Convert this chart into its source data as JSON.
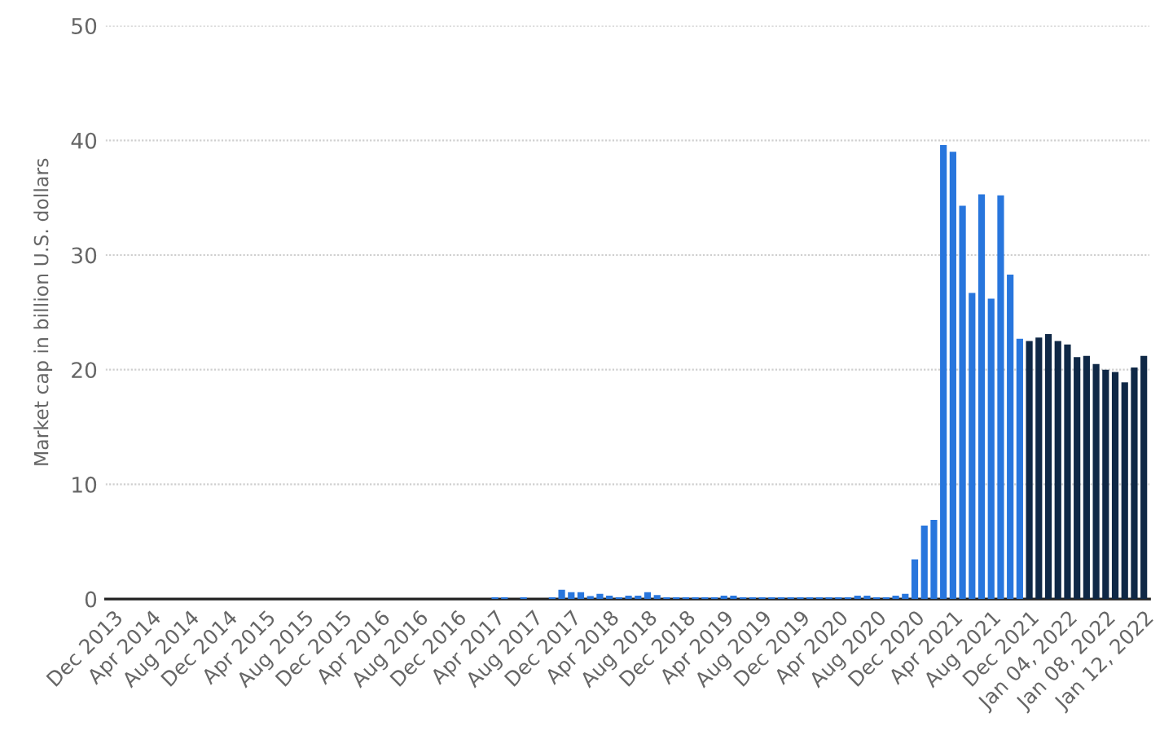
{
  "chart_data": {
    "type": "bar",
    "ylabel": "Market cap in billion U.S. dollars",
    "categories": [
      "Dec 2013",
      null,
      null,
      null,
      "Apr 2014",
      null,
      null,
      null,
      "Aug 2014",
      null,
      null,
      null,
      "Dec 2014",
      null,
      null,
      null,
      "Apr 2015",
      null,
      null,
      null,
      "Aug 2015",
      null,
      null,
      null,
      "Dec 2015",
      null,
      null,
      null,
      "Apr 2016",
      null,
      null,
      null,
      "Aug 2016",
      null,
      null,
      null,
      "Dec 2016",
      null,
      null,
      null,
      "Apr 2017",
      null,
      null,
      null,
      "Aug 2017",
      null,
      null,
      null,
      "Dec 2017",
      null,
      null,
      null,
      "Apr 2018",
      null,
      null,
      null,
      "Aug 2018",
      null,
      null,
      null,
      "Dec 2018",
      null,
      null,
      null,
      "Apr 2019",
      null,
      null,
      null,
      "Aug 2019",
      null,
      null,
      null,
      "Dec 2019",
      null,
      null,
      null,
      "Apr 2020",
      null,
      null,
      null,
      "Aug 2020",
      null,
      null,
      null,
      "Dec 2020",
      null,
      null,
      null,
      "Apr 2021",
      null,
      null,
      null,
      "Aug 2021",
      null,
      null,
      null,
      "Dec 2021",
      null,
      null,
      null,
      "Jan 04, 2022",
      null,
      null,
      null,
      "Jan 08, 2022",
      null,
      null,
      null,
      "Jan 12, 2022"
    ],
    "values": [
      0,
      0,
      0,
      0,
      0,
      0,
      0,
      0,
      0,
      0,
      0,
      0,
      0,
      0,
      0,
      0,
      0,
      0,
      0,
      0,
      0,
      0,
      0,
      0,
      0,
      0,
      0,
      0,
      0,
      0,
      0,
      0,
      0,
      0,
      0,
      0,
      0,
      0,
      0,
      0,
      0.15,
      0.15,
      0,
      0.15,
      0,
      0,
      0.15,
      0.8,
      0.6,
      0.6,
      0.25,
      0.45,
      0.3,
      0.15,
      0.3,
      0.3,
      0.6,
      0.35,
      0.15,
      0.15,
      0.15,
      0.15,
      0.15,
      0.15,
      0.3,
      0.3,
      0.15,
      0.15,
      0.15,
      0.15,
      0.15,
      0.15,
      0.15,
      0.15,
      0.15,
      0.15,
      0.15,
      0.15,
      0.3,
      0.3,
      0.15,
      0.15,
      0.3,
      0.45,
      3.45,
      6.4,
      6.9,
      39.6,
      39.0,
      34.3,
      26.7,
      35.3,
      26.2,
      35.2,
      28.3,
      22.7,
      22.5,
      22.8,
      23.1,
      22.5,
      22.2,
      21.1,
      21.2,
      20.5,
      20.0,
      19.8,
      18.9,
      20.2,
      21.2
    ],
    "colors": [
      "#2876dd",
      "#2876dd",
      "#2876dd",
      "#2876dd",
      "#2876dd",
      "#2876dd",
      "#2876dd",
      "#2876dd",
      "#2876dd",
      "#2876dd",
      "#2876dd",
      "#2876dd",
      "#2876dd",
      "#2876dd",
      "#2876dd",
      "#2876dd",
      "#2876dd",
      "#2876dd",
      "#2876dd",
      "#2876dd",
      "#2876dd",
      "#2876dd",
      "#2876dd",
      "#2876dd",
      "#2876dd",
      "#2876dd",
      "#2876dd",
      "#2876dd",
      "#2876dd",
      "#2876dd",
      "#2876dd",
      "#2876dd",
      "#2876dd",
      "#2876dd",
      "#2876dd",
      "#2876dd",
      "#2876dd",
      "#2876dd",
      "#2876dd",
      "#2876dd",
      "#2876dd",
      "#2876dd",
      "#2876dd",
      "#2876dd",
      "#2876dd",
      "#2876dd",
      "#2876dd",
      "#2876dd",
      "#2876dd",
      "#2876dd",
      "#2876dd",
      "#2876dd",
      "#2876dd",
      "#2876dd",
      "#2876dd",
      "#2876dd",
      "#2876dd",
      "#2876dd",
      "#2876dd",
      "#2876dd",
      "#2876dd",
      "#2876dd",
      "#2876dd",
      "#2876dd",
      "#2876dd",
      "#2876dd",
      "#2876dd",
      "#2876dd",
      "#2876dd",
      "#2876dd",
      "#2876dd",
      "#2876dd",
      "#2876dd",
      "#2876dd",
      "#2876dd",
      "#2876dd",
      "#2876dd",
      "#2876dd",
      "#2876dd",
      "#2876dd",
      "#2876dd",
      "#2876dd",
      "#2876dd",
      "#2876dd",
      "#2876dd",
      "#2876dd",
      "#2876dd",
      "#2876dd",
      "#2876dd",
      "#2876dd",
      "#2876dd",
      "#2876dd",
      "#2876dd",
      "#2876dd",
      "#2876dd",
      "#2876dd",
      "#0f2846",
      "#0f2846",
      "#0f2846",
      "#0f2846",
      "#0f2846",
      "#0f2846",
      "#0f2846",
      "#0f2846",
      "#0f2846",
      "#0f2846",
      "#0f2846",
      "#0f2846",
      "#0f2846"
    ],
    "ylim": [
      0,
      50
    ],
    "yticks": [
      0,
      10,
      20,
      30,
      40,
      50
    ],
    "grid": "y"
  }
}
